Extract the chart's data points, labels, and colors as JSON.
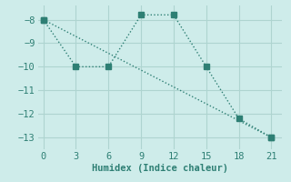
{
  "line1_x": [
    0,
    3,
    6,
    9,
    12,
    15,
    18,
    21
  ],
  "line1_y": [
    -8.0,
    -10.0,
    -10.0,
    -7.8,
    -7.8,
    -10.0,
    -12.2,
    -13.0
  ],
  "line2_x": [
    0,
    21
  ],
  "line2_y": [
    -8.0,
    -13.0
  ],
  "line_color": "#2e7f74",
  "bg_color": "#ceecea",
  "grid_color": "#aed4d0",
  "xlabel": "Humidex (Indice chaleur)",
  "xlim": [
    -0.5,
    22
  ],
  "ylim": [
    -13.5,
    -7.4
  ],
  "xticks": [
    0,
    3,
    6,
    9,
    12,
    15,
    18,
    21
  ],
  "yticks": [
    -8,
    -9,
    -10,
    -11,
    -12,
    -13
  ],
  "markersize": 4,
  "linewidth": 1.0
}
